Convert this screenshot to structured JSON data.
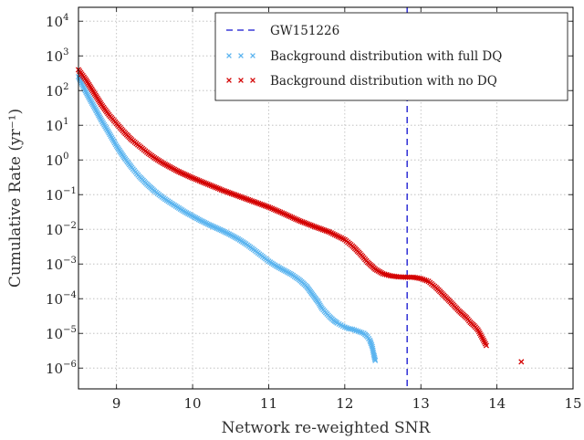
{
  "chart_data": {
    "type": "scatter",
    "xlabel": "Network re-weighted SNR",
    "ylabel": "Cumulative Rate (yr⁻¹)",
    "xlim": [
      8.5,
      15
    ],
    "ylim_log10": [
      -6.6,
      4.4
    ],
    "y_scale": "log",
    "grid": true,
    "legend_position": "top-right",
    "x_ticks": [
      9,
      10,
      11,
      12,
      13,
      14,
      15
    ],
    "y_ticks": [
      {
        "base": "10",
        "exp": "4",
        "value": 4
      },
      {
        "base": "10",
        "exp": "3",
        "value": 3
      },
      {
        "base": "10",
        "exp": "2",
        "value": 2
      },
      {
        "base": "10",
        "exp": "1",
        "value": 1
      },
      {
        "base": "10",
        "exp": "0",
        "value": 0
      },
      {
        "base": "10",
        "exp": "−1",
        "value": -1
      },
      {
        "base": "10",
        "exp": "−2",
        "value": -2
      },
      {
        "base": "10",
        "exp": "−3",
        "value": -3
      },
      {
        "base": "10",
        "exp": "−4",
        "value": -4
      },
      {
        "base": "10",
        "exp": "−5",
        "value": -5
      },
      {
        "base": "10",
        "exp": "−6",
        "value": -6
      }
    ],
    "event_line": {
      "name": "GW151226",
      "x": 12.82,
      "color": "#3a3ad8"
    },
    "series": [
      {
        "name": "Background distribution with full DQ",
        "color": "#5bb4ef",
        "points": [
          [
            8.5,
            2.4
          ],
          [
            8.6,
            1.95
          ],
          [
            8.7,
            1.55
          ],
          [
            8.8,
            1.15
          ],
          [
            8.9,
            0.78
          ],
          [
            9.0,
            0.4
          ],
          [
            9.1,
            0.07
          ],
          [
            9.2,
            -0.22
          ],
          [
            9.3,
            -0.48
          ],
          [
            9.4,
            -0.7
          ],
          [
            9.5,
            -0.9
          ],
          [
            9.6,
            -1.07
          ],
          [
            9.7,
            -1.22
          ],
          [
            9.8,
            -1.36
          ],
          [
            9.9,
            -1.5
          ],
          [
            10.0,
            -1.62
          ],
          [
            10.1,
            -1.74
          ],
          [
            10.2,
            -1.85
          ],
          [
            10.3,
            -1.95
          ],
          [
            10.4,
            -2.05
          ],
          [
            10.5,
            -2.16
          ],
          [
            10.6,
            -2.28
          ],
          [
            10.7,
            -2.42
          ],
          [
            10.8,
            -2.58
          ],
          [
            10.9,
            -2.75
          ],
          [
            11.0,
            -2.92
          ],
          [
            11.1,
            -3.06
          ],
          [
            11.2,
            -3.18
          ],
          [
            11.3,
            -3.3
          ],
          [
            11.4,
            -3.45
          ],
          [
            11.5,
            -3.65
          ],
          [
            11.55,
            -3.8
          ],
          [
            11.6,
            -3.95
          ],
          [
            11.65,
            -4.1
          ],
          [
            11.7,
            -4.28
          ],
          [
            11.75,
            -4.4
          ],
          [
            11.8,
            -4.52
          ],
          [
            11.85,
            -4.62
          ],
          [
            11.9,
            -4.7
          ],
          [
            11.95,
            -4.76
          ],
          [
            12.0,
            -4.82
          ],
          [
            12.05,
            -4.86
          ],
          [
            12.1,
            -4.88
          ],
          [
            12.15,
            -4.92
          ],
          [
            12.2,
            -4.96
          ],
          [
            12.25,
            -5.0
          ],
          [
            12.3,
            -5.1
          ],
          [
            12.33,
            -5.2
          ],
          [
            12.36,
            -5.38
          ],
          [
            12.38,
            -5.6
          ],
          [
            12.4,
            -5.78
          ]
        ]
      },
      {
        "name": "Background distribution with no DQ",
        "color": "#d40000",
        "points": [
          [
            8.5,
            2.6
          ],
          [
            8.6,
            2.3
          ],
          [
            8.7,
            1.95
          ],
          [
            8.8,
            1.6
          ],
          [
            8.9,
            1.3
          ],
          [
            9.0,
            1.05
          ],
          [
            9.1,
            0.8
          ],
          [
            9.2,
            0.58
          ],
          [
            9.3,
            0.4
          ],
          [
            9.4,
            0.22
          ],
          [
            9.5,
            0.06
          ],
          [
            9.6,
            -0.08
          ],
          [
            9.7,
            -0.2
          ],
          [
            9.8,
            -0.32
          ],
          [
            9.9,
            -0.42
          ],
          [
            10.0,
            -0.52
          ],
          [
            10.2,
            -0.7
          ],
          [
            10.4,
            -0.88
          ],
          [
            10.6,
            -1.04
          ],
          [
            10.8,
            -1.2
          ],
          [
            11.0,
            -1.36
          ],
          [
            11.2,
            -1.55
          ],
          [
            11.4,
            -1.75
          ],
          [
            11.6,
            -1.92
          ],
          [
            11.8,
            -2.08
          ],
          [
            12.0,
            -2.3
          ],
          [
            12.1,
            -2.48
          ],
          [
            12.2,
            -2.7
          ],
          [
            12.3,
            -2.95
          ],
          [
            12.4,
            -3.15
          ],
          [
            12.5,
            -3.28
          ],
          [
            12.6,
            -3.34
          ],
          [
            12.7,
            -3.37
          ],
          [
            12.8,
            -3.38
          ],
          [
            12.9,
            -3.38
          ],
          [
            13.0,
            -3.42
          ],
          [
            13.1,
            -3.5
          ],
          [
            13.2,
            -3.68
          ],
          [
            13.3,
            -3.9
          ],
          [
            13.4,
            -4.12
          ],
          [
            13.5,
            -4.35
          ],
          [
            13.6,
            -4.55
          ],
          [
            13.65,
            -4.68
          ],
          [
            13.7,
            -4.78
          ],
          [
            13.75,
            -4.9
          ],
          [
            13.8,
            -5.1
          ],
          [
            13.86,
            -5.35
          ],
          [
            14.32,
            -5.82
          ]
        ]
      }
    ]
  }
}
